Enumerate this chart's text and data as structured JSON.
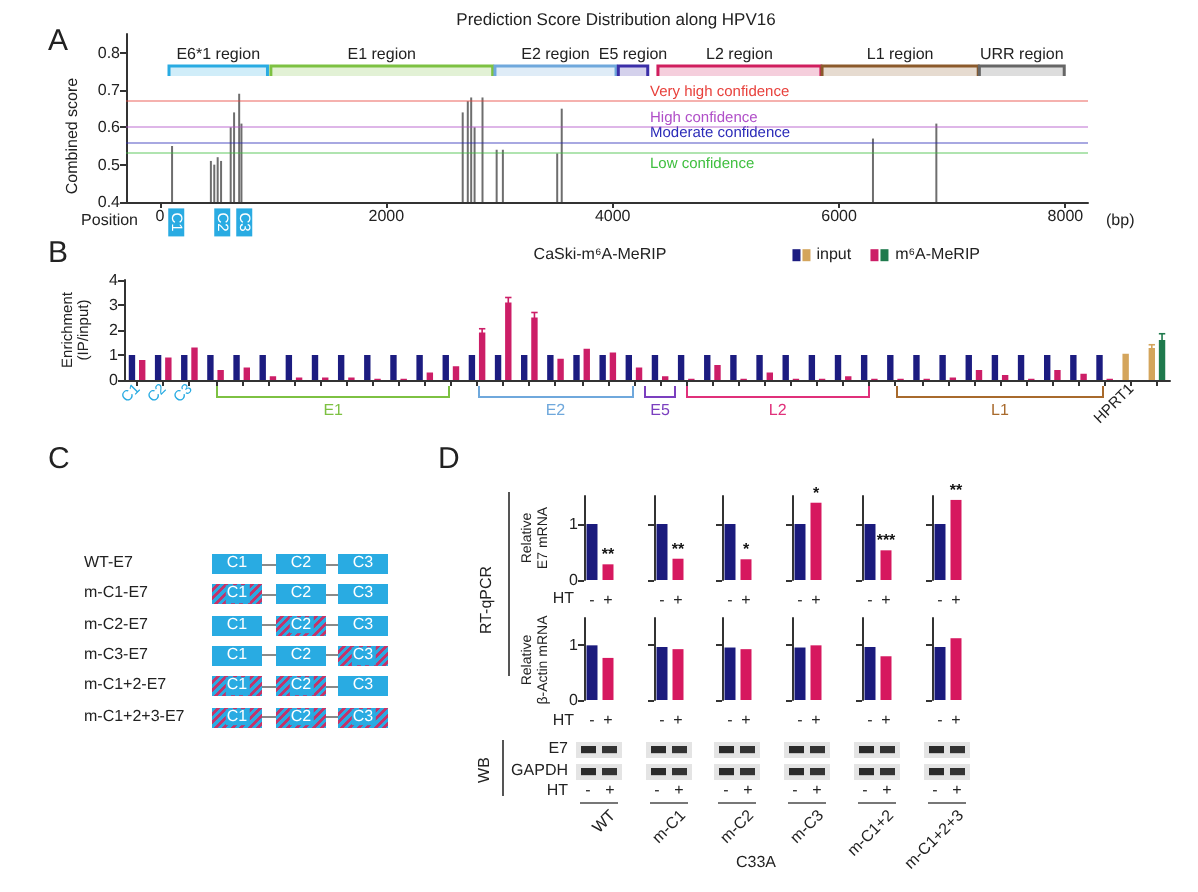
{
  "chart_data": [
    {
      "type": "bar",
      "title": "Prediction Score Distribution along HPV16",
      "xlabel": "Position",
      "ylabel": "Combined score",
      "x": [
        107,
        450,
        480,
        510,
        540,
        625,
        655,
        700,
        720,
        2675,
        2720,
        2750,
        2780,
        2850,
        2975,
        3030,
        3510,
        3550,
        6300,
        6860
      ],
      "values": [
        0.55,
        0.51,
        0.5,
        0.52,
        0.51,
        0.6,
        0.64,
        0.69,
        0.61,
        0.64,
        0.67,
        0.68,
        0.6,
        0.68,
        0.54,
        0.54,
        0.53,
        0.65,
        0.57,
        0.61
      ],
      "color": "#6e6e6e",
      "xlim": [
        -300,
        8200
      ],
      "xticks": [
        0,
        2000,
        4000,
        6000,
        8000
      ],
      "ylim": [
        0.4,
        0.85
      ],
      "yticks": [
        0.4,
        0.5,
        0.6,
        0.7,
        0.8
      ],
      "ref_lines": [
        {
          "axis": "y",
          "value": 0.67,
          "label": "Very high confidence",
          "color": "#e8413c"
        },
        {
          "axis": "y",
          "value": 0.6,
          "label": "High confidence",
          "color": "#b04fc8"
        },
        {
          "axis": "y",
          "value": 0.56,
          "label": "Moderate confidence",
          "color": "#2b2bb8"
        },
        {
          "axis": "y",
          "value": 0.53,
          "label": "Low confidence",
          "color": "#3fbf3f"
        }
      ],
      "bands": [
        {
          "axis": "x",
          "from": 80,
          "to": 950,
          "label": "E6*1 region",
          "color": "#29abe2"
        },
        {
          "axis": "x",
          "from": 980,
          "to": 2940,
          "label": "E1 region",
          "color": "#7dc142"
        },
        {
          "axis": "x",
          "from": 2960,
          "to": 4030,
          "label": "E2 region",
          "color": "#6fa8dc"
        },
        {
          "axis": "x",
          "from": 4050,
          "to": 4310,
          "label": "E5 region",
          "color": "#3b2fa8"
        },
        {
          "axis": "x",
          "from": 4400,
          "to": 5840,
          "label": "L2 region",
          "color": "#d01e5e"
        },
        {
          "axis": "x",
          "from": 5850,
          "to": 7230,
          "label": "L1 region",
          "color": "#8b5a2b"
        },
        {
          "axis": "x",
          "from": 7240,
          "to": 7990,
          "label": "URR region",
          "color": "#666666"
        }
      ],
      "annotations": [
        "A",
        "(bp)",
        {
          "text": "C1",
          "x": 140
        },
        {
          "text": "C2",
          "x": 540
        },
        {
          "text": "C3",
          "x": 740
        }
      ]
    },
    {
      "type": "bar",
      "title": "CaSki-m⁶A-MeRIP",
      "ylabel": "Enrichment\n(IP/input)",
      "categories": [
        "C1",
        "C2",
        "C3",
        null,
        null,
        null,
        null,
        null,
        null,
        null,
        null,
        null,
        null,
        null,
        null,
        null,
        null,
        null,
        null,
        null,
        null,
        null,
        null,
        null,
        null,
        null,
        null,
        null,
        null,
        null,
        null,
        null,
        null,
        null,
        null,
        null,
        null,
        null,
        "HPRT1",
        null
      ],
      "series": [
        {
          "name": "input",
          "colors": [
            "#1c1c80",
            "#1c1c80",
            "#1c1c80",
            "#1c1c80",
            "#1c1c80",
            "#1c1c80",
            "#1c1c80",
            "#1c1c80",
            "#1c1c80",
            "#1c1c80",
            "#1c1c80",
            "#1c1c80",
            "#1c1c80",
            "#1c1c80",
            "#1c1c80",
            "#1c1c80",
            "#1c1c80",
            "#1c1c80",
            "#1c1c80",
            "#1c1c80",
            "#1c1c80",
            "#1c1c80",
            "#1c1c80",
            "#1c1c80",
            "#1c1c80",
            "#1c1c80",
            "#1c1c80",
            "#1c1c80",
            "#1c1c80",
            "#1c1c80",
            "#1c1c80",
            "#1c1c80",
            "#1c1c80",
            "#1c1c80",
            "#1c1c80",
            "#1c1c80",
            "#1c1c80",
            "#1c1c80",
            "#d4a55c",
            "#d4a55c"
          ],
          "values": [
            1,
            1,
            1,
            1,
            1,
            1,
            1,
            1,
            1,
            1,
            1,
            1,
            1,
            1,
            1,
            1,
            1,
            1,
            1,
            1,
            1,
            1,
            1,
            1,
            1,
            1,
            1,
            1,
            1,
            1,
            1,
            1,
            1,
            1,
            1,
            1,
            1,
            1,
            1.05,
            1.28
          ],
          "errors": [
            null,
            null,
            null,
            null,
            null,
            null,
            null,
            null,
            null,
            null,
            null,
            null,
            null,
            null,
            null,
            null,
            null,
            null,
            null,
            null,
            null,
            null,
            null,
            null,
            null,
            null,
            null,
            null,
            null,
            null,
            null,
            null,
            null,
            null,
            null,
            null,
            null,
            null,
            null,
            0.13
          ]
        },
        {
          "name": "m⁶A-MeRIP",
          "colors": [
            "#cc1e67",
            "#cc1e67",
            "#cc1e67",
            "#cc1e67",
            "#cc1e67",
            "#cc1e67",
            "#cc1e67",
            "#cc1e67",
            "#cc1e67",
            "#cc1e67",
            "#cc1e67",
            "#cc1e67",
            "#cc1e67",
            "#cc1e67",
            "#cc1e67",
            "#cc1e67",
            "#cc1e67",
            "#cc1e67",
            "#cc1e67",
            "#cc1e67",
            "#cc1e67",
            "#cc1e67",
            "#cc1e67",
            "#cc1e67",
            "#cc1e67",
            "#cc1e67",
            "#cc1e67",
            "#cc1e67",
            "#cc1e67",
            "#cc1e67",
            "#cc1e67",
            "#cc1e67",
            "#cc1e67",
            "#cc1e67",
            "#cc1e67",
            "#cc1e67",
            "#cc1e67",
            "#cc1e67",
            "#1f7a4d",
            "#1f7a4d"
          ],
          "values": [
            0.8,
            0.9,
            1.3,
            0.4,
            0.5,
            0.15,
            0.1,
            0.1,
            0.1,
            0.05,
            0.05,
            0.3,
            0.55,
            1.9,
            3.1,
            2.5,
            0.85,
            1.25,
            1.1,
            0.5,
            0.15,
            0.05,
            0.6,
            0.05,
            0.3,
            0.05,
            0.05,
            0.15,
            0.05,
            0.05,
            0.05,
            0.1,
            0.4,
            0.2,
            0.05,
            0.4,
            0.25,
            0.05,
            null,
            1.6
          ],
          "errors": [
            null,
            null,
            null,
            null,
            null,
            null,
            null,
            null,
            null,
            null,
            null,
            null,
            null,
            0.15,
            0.2,
            0.2,
            null,
            null,
            null,
            null,
            null,
            null,
            null,
            null,
            null,
            null,
            null,
            null,
            null,
            null,
            null,
            null,
            null,
            null,
            null,
            null,
            null,
            null,
            null,
            0.25
          ]
        }
      ],
      "ylim": [
        0,
        4
      ],
      "yticks": [
        0,
        1,
        2,
        3,
        4
      ],
      "legend": "top right",
      "annotations": [
        "B",
        "E1",
        "E2",
        "E5",
        "L2",
        "L1"
      ]
    },
    {
      "type": "other",
      "annotations": [
        "C"
      ],
      "y_categories": [
        "WT-E7",
        "m-C1-E7",
        "m-C2-E7",
        "m-C3-E7",
        "m-C1+2-E7",
        "m-C1+2+3-E7"
      ],
      "cell_labels": [
        [
          "C1",
          "C2",
          "C3"
        ],
        [
          "C1",
          "C2",
          "C3"
        ],
        [
          "C1",
          "C2",
          "C3"
        ],
        [
          "C1",
          "C2",
          "C3"
        ],
        [
          "C1",
          "C2",
          "C3"
        ],
        [
          "C1",
          "C2",
          "C3"
        ]
      ],
      "colors": [
        [
          "#29abe2",
          "#29abe2",
          "#29abe2"
        ],
        [
          [
            "#29abe2",
            "#c2356b"
          ],
          "#29abe2",
          "#29abe2"
        ],
        [
          "#29abe2",
          [
            "#29abe2",
            "#c2356b"
          ],
          "#29abe2"
        ],
        [
          "#29abe2",
          "#29abe2",
          [
            "#29abe2",
            "#c2356b"
          ]
        ],
        [
          [
            "#29abe2",
            "#c2356b"
          ],
          [
            "#29abe2",
            "#c2356b"
          ],
          "#29abe2"
        ],
        [
          [
            "#29abe2",
            "#c2356b"
          ],
          [
            "#29abe2",
            "#c2356b"
          ],
          [
            "#29abe2",
            "#c2356b"
          ]
        ]
      ]
    },
    {
      "type": "bar",
      "categories": [
        "-",
        "+"
      ],
      "values": [
        1,
        0.28
      ],
      "colors": [
        "#1b1b7d",
        "#d6185f"
      ],
      "ylim": [
        0,
        1.5
      ],
      "yticks": [
        0,
        1
      ],
      "ylabel": "Relative\nE7 mRNA",
      "xlabel": "HT",
      "annotations": [
        "D",
        "RT-qPCR",
        {
          "text": "**",
          "x": "+",
          "y": 0.28
        }
      ]
    },
    {
      "type": "bar",
      "categories": [
        "-",
        "+"
      ],
      "values": [
        1,
        0.38
      ],
      "colors": [
        "#1b1b7d",
        "#d6185f"
      ],
      "ylim": [
        0,
        1.5
      ],
      "yticks": [
        0,
        1
      ],
      "tick_labels": "x",
      "annotations": [
        {
          "text": "**",
          "x": "+",
          "y": 0.38
        }
      ]
    },
    {
      "type": "bar",
      "categories": [
        "-",
        "+"
      ],
      "values": [
        1,
        0.37
      ],
      "colors": [
        "#1b1b7d",
        "#d6185f"
      ],
      "ylim": [
        0,
        1.5
      ],
      "yticks": [
        0,
        1
      ],
      "tick_labels": "x",
      "annotations": [
        {
          "text": "*",
          "x": "+",
          "y": 0.37
        }
      ]
    },
    {
      "type": "bar",
      "categories": [
        "-",
        "+"
      ],
      "values": [
        1,
        1.38
      ],
      "colors": [
        "#1b1b7d",
        "#d6185f"
      ],
      "ylim": [
        0,
        1.5
      ],
      "yticks": [
        0,
        1
      ],
      "tick_labels": "x",
      "annotations": [
        {
          "text": "*",
          "x": "+",
          "y": 1.38
        }
      ]
    },
    {
      "type": "bar",
      "categories": [
        "-",
        "+"
      ],
      "values": [
        1,
        0.53
      ],
      "colors": [
        "#1b1b7d",
        "#d6185f"
      ],
      "ylim": [
        0,
        1.5
      ],
      "yticks": [
        0,
        1
      ],
      "tick_labels": "x",
      "annotations": [
        {
          "text": "***",
          "x": "+",
          "y": 0.53
        }
      ]
    },
    {
      "type": "bar",
      "categories": [
        "-",
        "+"
      ],
      "values": [
        1,
        1.43
      ],
      "colors": [
        "#1b1b7d",
        "#d6185f"
      ],
      "ylim": [
        0,
        1.5
      ],
      "yticks": [
        0,
        1
      ],
      "tick_labels": "x",
      "annotations": [
        {
          "text": "**",
          "x": "+",
          "y": 1.43
        }
      ]
    },
    {
      "type": "bar",
      "categories": [
        "-",
        "+"
      ],
      "values": [
        1,
        0.77
      ],
      "colors": [
        "#1b1b7d",
        "#d6185f"
      ],
      "ylim": [
        0,
        1.5
      ],
      "yticks": [
        0,
        1
      ],
      "ylabel": "Relative\nβ-Actin mRNA",
      "xlabel": "HT"
    },
    {
      "type": "bar",
      "categories": [
        "-",
        "+"
      ],
      "values": [
        0.97,
        0.93
      ],
      "colors": [
        "#1b1b7d",
        "#d6185f"
      ],
      "ylim": [
        0,
        1.5
      ],
      "yticks": [
        0,
        1
      ],
      "tick_labels": "x"
    },
    {
      "type": "bar",
      "categories": [
        "-",
        "+"
      ],
      "values": [
        0.96,
        0.93
      ],
      "colors": [
        "#1b1b7d",
        "#d6185f"
      ],
      "ylim": [
        0,
        1.5
      ],
      "yticks": [
        0,
        1
      ],
      "tick_labels": "x"
    },
    {
      "type": "bar",
      "categories": [
        "-",
        "+"
      ],
      "values": [
        0.96,
        1.0
      ],
      "colors": [
        "#1b1b7d",
        "#d6185f"
      ],
      "ylim": [
        0,
        1.5
      ],
      "yticks": [
        0,
        1
      ],
      "tick_labels": "x"
    },
    {
      "type": "bar",
      "categories": [
        "-",
        "+"
      ],
      "values": [
        0.97,
        0.8
      ],
      "colors": [
        "#1b1b7d",
        "#d6185f"
      ],
      "ylim": [
        0,
        1.5
      ],
      "yticks": [
        0,
        1
      ],
      "tick_labels": "x"
    },
    {
      "type": "bar",
      "categories": [
        "-",
        "+"
      ],
      "values": [
        0.97,
        1.13
      ],
      "colors": [
        "#1b1b7d",
        "#d6185f"
      ],
      "ylim": [
        0,
        1.5
      ],
      "yticks": [
        0,
        1
      ],
      "tick_labels": "x"
    },
    {
      "type": "other",
      "ylabel": "WB",
      "y_categories": [
        "E7",
        "GAPDH"
      ],
      "categories": [
        "WT",
        "m-C1",
        "m-C2",
        "m-C3",
        "m-C1+2",
        "m-C1+2+3"
      ],
      "xlabel": "C33A",
      "annotations": [
        "HT",
        "-",
        "+"
      ]
    }
  ]
}
